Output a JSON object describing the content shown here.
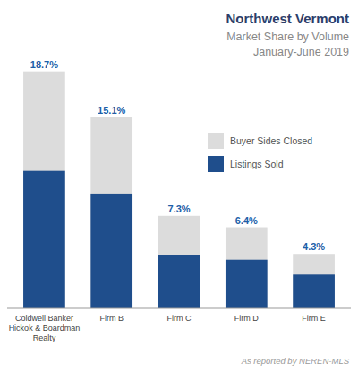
{
  "chart_data": {
    "type": "bar",
    "title": "Northwest Vermont",
    "subtitle": [
      "Market Share by Volume",
      "January-June 2019"
    ],
    "annotations": [
      "As reported by NEREN-MLS"
    ],
    "categories": [
      "Coldwell Banker\nHickok & Boardman\nRealty",
      "Firm B",
      "Firm C",
      "Firm D",
      "Firm E"
    ],
    "series": [
      {
        "name": "Buyer Sides Closed",
        "color": "#dcdcdc",
        "values": [
          18.7,
          15.1,
          7.3,
          6.4,
          4.3
        ],
        "data_labels": true,
        "value_labels": [
          "18.7%",
          "15.1%",
          "7.3%",
          "6.4%",
          "4.3%"
        ]
      },
      {
        "name": "Listings Sold",
        "color": "#1f4e8c",
        "values": [
          10.846,
          9.06,
          4.234,
          3.84,
          2.666
        ]
      }
    ],
    "stacked": false,
    "ylim": [
      0,
      22
    ],
    "tick_labels": false,
    "grid": false,
    "legend": "right"
  }
}
